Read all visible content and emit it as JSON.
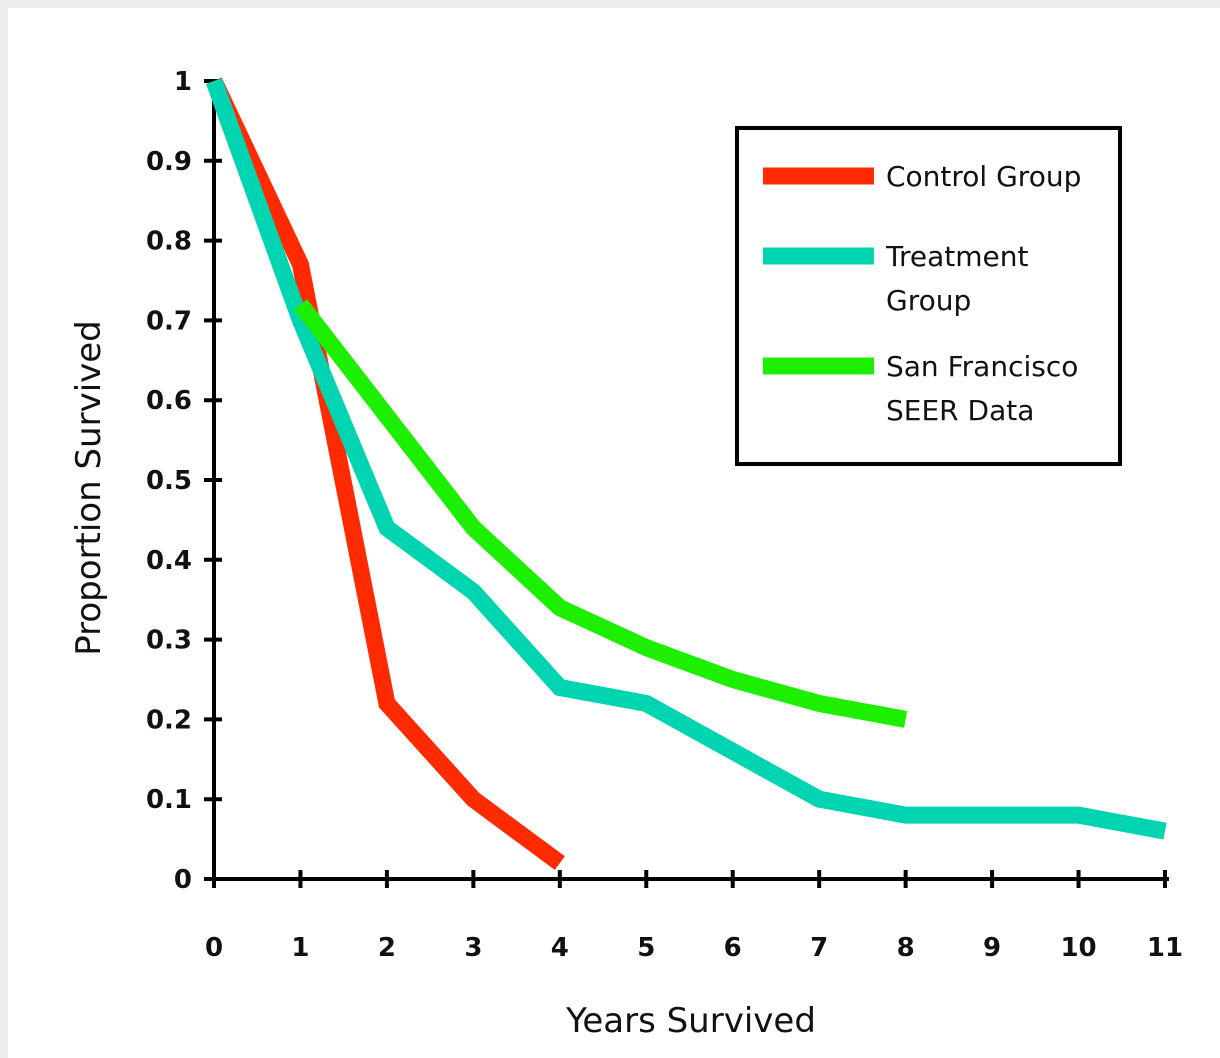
{
  "chart_data": {
    "type": "line",
    "xlabel": "Years Survived",
    "ylabel": "Proportion Survived",
    "xlim": [
      0,
      11
    ],
    "ylim": [
      0,
      1
    ],
    "x_ticks": [
      "0",
      "1",
      "2",
      "3",
      "4",
      "5",
      "6",
      "7",
      "8",
      "9",
      "10",
      "11"
    ],
    "y_ticks": [
      "0",
      "0.1",
      "0.2",
      "0.3",
      "0.4",
      "0.5",
      "0.6",
      "0.7",
      "0.8",
      "0.9",
      "1"
    ],
    "grid": false,
    "legend_position": "top-right",
    "series": [
      {
        "name": "Control Group",
        "color": "#ff2a00",
        "x": [
          0,
          1,
          2,
          3,
          4
        ],
        "values": [
          1.0,
          0.77,
          0.22,
          0.1,
          0.02
        ]
      },
      {
        "name": "Treatment Group",
        "legend_lines": [
          "Treatment",
          "Group"
        ],
        "color": "#00d4b0",
        "x": [
          0,
          1,
          2,
          3,
          4,
          5,
          6,
          7,
          8,
          9,
          10,
          11
        ],
        "values": [
          1.0,
          0.7,
          0.44,
          0.36,
          0.24,
          0.22,
          0.16,
          0.1,
          0.08,
          0.08,
          0.08,
          0.06
        ]
      },
      {
        "name": "San Francisco SEER Data",
        "legend_lines": [
          "San Francisco",
          "SEER Data"
        ],
        "color": "#1cf000",
        "x": [
          1,
          2,
          3,
          4,
          5,
          6,
          7,
          8
        ],
        "values": [
          0.72,
          0.58,
          0.44,
          0.34,
          0.29,
          0.25,
          0.22,
          0.2
        ]
      }
    ]
  }
}
